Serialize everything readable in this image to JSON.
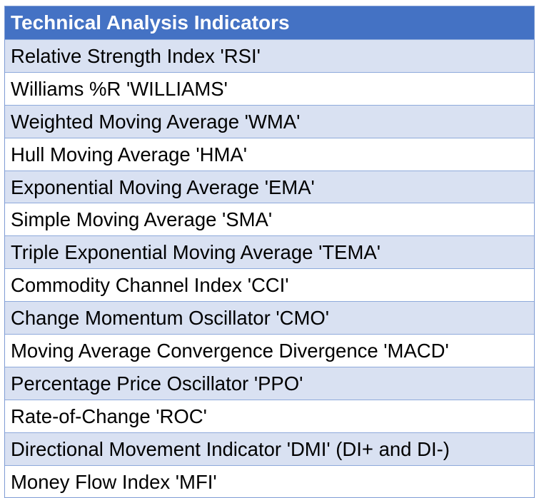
{
  "table": {
    "header": "Technical Analysis Indicators",
    "rows": [
      "Relative Strength Index 'RSI'",
      "Williams %R 'WILLIAMS'",
      "Weighted Moving Average 'WMA'",
      "Hull Moving Average 'HMA'",
      "Exponential Moving Average 'EMA'",
      "Simple Moving Average 'SMA'",
      "Triple Exponential Moving Average 'TEMA'",
      "Commodity Channel Index 'CCI'",
      "Change Momentum Oscillator 'CMO'",
      "Moving Average Convergence Divergence 'MACD'",
      "Percentage Price Oscillator 'PPO'",
      "Rate-of-Change 'ROC'",
      "Directional Movement Indicator 'DMI' (DI+ and DI-)",
      "Money Flow Index 'MFI'"
    ],
    "colors": {
      "header_bg": "#4472c4",
      "header_text": "#ffffff",
      "band_bg": "#d9e1f2",
      "plain_bg": "#ffffff"
    }
  }
}
